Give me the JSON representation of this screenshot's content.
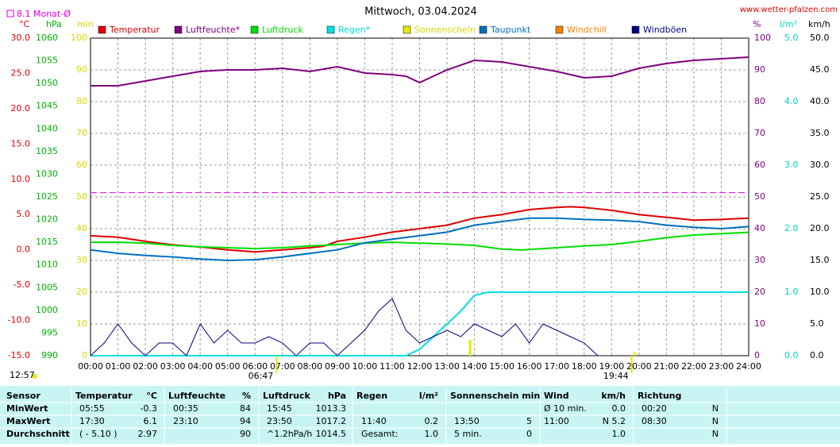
{
  "chart_data": {
    "type": "line",
    "title": "Mittwoch, 03.04.2024",
    "source": "www.wetter-pfalzen.com",
    "monthly_average": {
      "value": 8.1,
      "label": "8.1 Monat-Ø"
    },
    "xlim": [
      0,
      24
    ],
    "xticks": [
      {
        "value": 0,
        "label": "00:00"
      },
      {
        "value": 1,
        "label": "01:00"
      },
      {
        "value": 2,
        "label": "02:00"
      },
      {
        "value": 3,
        "label": "03:00"
      },
      {
        "value": 4,
        "label": "04:00"
      },
      {
        "value": 5,
        "label": "05:00"
      },
      {
        "value": 6,
        "label": "06:00"
      },
      {
        "value": 7,
        "label": "07:00"
      },
      {
        "value": 8,
        "label": "08:00"
      },
      {
        "value": 9,
        "label": "09:00"
      },
      {
        "value": 10,
        "label": "10:00"
      },
      {
        "value": 11,
        "label": "11:00"
      },
      {
        "value": 12,
        "label": "12:00"
      },
      {
        "value": 13,
        "label": "13:00"
      },
      {
        "value": 14,
        "label": "14:00"
      },
      {
        "value": 15,
        "label": "15:00"
      },
      {
        "value": 16,
        "label": "16:00"
      },
      {
        "value": 17,
        "label": "17:00"
      },
      {
        "value": 18,
        "label": "18:00"
      },
      {
        "value": 19,
        "label": "19:00"
      },
      {
        "value": 20,
        "label": "20:00"
      },
      {
        "value": 21,
        "label": "21:00"
      },
      {
        "value": 22,
        "label": "22:00"
      },
      {
        "value": 23,
        "label": "23:00"
      },
      {
        "value": 24,
        "label": "24:00"
      }
    ],
    "axes": [
      {
        "unit": "°C",
        "color": "#e00000",
        "lim": [
          -15,
          30
        ],
        "ticks": [
          {
            "value": 30,
            "label": "30.0"
          },
          {
            "value": 25,
            "label": "25.0"
          },
          {
            "value": 20,
            "label": "20.0"
          },
          {
            "value": 15,
            "label": "15.0"
          },
          {
            "value": 10,
            "label": "10.0"
          },
          {
            "value": 5,
            "label": "5.0"
          },
          {
            "value": 0,
            "label": "0.0"
          },
          {
            "value": -5,
            "label": "-5.0"
          },
          {
            "value": -10,
            "label": "-10.0"
          },
          {
            "value": -15,
            "label": "-15.0"
          }
        ]
      },
      {
        "unit": "hPa",
        "color": "#00b000",
        "lim": [
          990,
          1060
        ],
        "ticks": [
          1060,
          1055,
          1050,
          1045,
          1040,
          1035,
          1030,
          1025,
          1020,
          1015,
          1010,
          1005,
          1000,
          995,
          990
        ]
      },
      {
        "unit": "min",
        "color": "#d8d800",
        "lim": [
          0,
          100
        ],
        "ticks": [
          100,
          90,
          80,
          70,
          60,
          50,
          40,
          30,
          20,
          10,
          0
        ]
      },
      {
        "unit": "%",
        "color": "#800080",
        "lim": [
          0,
          100
        ],
        "ticks": [
          100,
          90,
          80,
          70,
          60,
          50,
          40,
          30,
          20,
          10,
          0
        ]
      },
      {
        "unit": "l/m²",
        "color": "#00d0d0",
        "lim": [
          0,
          5
        ],
        "ticks": [
          {
            "value": 5,
            "label": "5.0"
          },
          {
            "value": 4,
            "label": "4.0"
          },
          {
            "value": 3,
            "label": "3.0"
          },
          {
            "value": 2,
            "label": "2.0"
          },
          {
            "value": 1,
            "label": "1.0"
          },
          {
            "value": 0,
            "label": "0.0"
          }
        ]
      },
      {
        "unit": "km/h",
        "color": "#000000",
        "lim": [
          0,
          50
        ],
        "ticks": [
          {
            "value": 50,
            "label": "50.0"
          },
          {
            "value": 45,
            "label": "45.0"
          },
          {
            "value": 40,
            "label": "40.0"
          },
          {
            "value": 35,
            "label": "35.0"
          },
          {
            "value": 30,
            "label": "30.0"
          },
          {
            "value": 25,
            "label": "25.0"
          },
          {
            "value": 20,
            "label": "20.0"
          },
          {
            "value": 15,
            "label": "15.0"
          },
          {
            "value": 10,
            "label": "10.0"
          },
          {
            "value": 5,
            "label": "5.0"
          },
          {
            "value": 0,
            "label": "0.0"
          }
        ]
      }
    ],
    "grid": true,
    "series": [
      {
        "name": "Temperatur",
        "color": "#e00000",
        "axis": 0,
        "x": [
          0,
          1,
          2,
          3,
          4,
          5,
          6,
          7,
          8,
          8.5,
          9,
          10,
          11,
          12,
          13,
          14,
          15,
          16,
          17,
          17.5,
          18,
          19,
          20,
          21,
          22,
          23,
          24
        ],
        "values": [
          2.0,
          1.8,
          1.2,
          0.7,
          0.4,
          0.0,
          -0.3,
          0.0,
          0.3,
          0.5,
          1.2,
          1.8,
          2.5,
          3.0,
          3.5,
          4.5,
          5.0,
          5.7,
          6.0,
          6.1,
          6.0,
          5.6,
          5.0,
          4.6,
          4.2,
          4.3,
          4.5
        ]
      },
      {
        "name": "Luftfeuchte*",
        "color": "#800080",
        "axis": 3,
        "x": [
          0,
          1,
          2,
          3,
          4,
          5,
          6,
          7,
          8,
          9,
          10,
          11,
          11.5,
          12,
          13,
          14,
          15,
          16,
          17,
          18,
          19,
          20,
          21,
          22,
          23,
          24
        ],
        "values": [
          85,
          85,
          86.5,
          88,
          89.5,
          90,
          90,
          90.5,
          89.5,
          91,
          89,
          88.5,
          88,
          86,
          90,
          93,
          92.5,
          91,
          89.5,
          87.5,
          88,
          90.5,
          92,
          93,
          93.5,
          94
        ]
      },
      {
        "name": "Luftdruck",
        "color": "#00e000",
        "axis": 1,
        "x": [
          0,
          1,
          2,
          3,
          4,
          5,
          6,
          7,
          8,
          9,
          10,
          11,
          12,
          13,
          14,
          15,
          15.75,
          16,
          17,
          18,
          19,
          20,
          21,
          22,
          23,
          24
        ],
        "values": [
          1015,
          1015,
          1014.8,
          1014.3,
          1014,
          1013.8,
          1013.6,
          1013.8,
          1014.2,
          1014.5,
          1014.8,
          1015,
          1014.8,
          1014.6,
          1014.3,
          1013.5,
          1013.3,
          1013.4,
          1013.8,
          1014.2,
          1014.5,
          1015.2,
          1016,
          1016.6,
          1016.9,
          1017.2
        ]
      },
      {
        "name": "Regen*",
        "color": "#00e0e0",
        "axis": 4,
        "x": [
          0,
          11.5,
          12,
          13,
          13.5,
          14,
          14.5,
          24
        ],
        "values": [
          0,
          0,
          0.1,
          0.5,
          0.7,
          0.95,
          1.0,
          1.0
        ]
      },
      {
        "name": "Sonnenschein",
        "color": "#e8e800",
        "axis": 2,
        "style": "bar",
        "x": [
          13.83,
          19.83
        ],
        "values": [
          5,
          1
        ]
      },
      {
        "name": "Taupunkt",
        "color": "#0070c0",
        "axis": 0,
        "x": [
          0,
          1,
          2,
          3,
          4,
          5,
          6,
          7,
          8,
          9,
          10,
          11,
          12,
          13,
          14,
          15,
          16,
          17,
          18,
          19,
          20,
          21,
          22,
          23,
          24
        ],
        "values": [
          0.0,
          -0.5,
          -0.8,
          -1.0,
          -1.3,
          -1.5,
          -1.4,
          -1.0,
          -0.5,
          0.0,
          1.0,
          1.5,
          2.0,
          2.5,
          3.5,
          4.0,
          4.5,
          4.5,
          4.3,
          4.2,
          4.0,
          3.5,
          3.2,
          3.0,
          3.3
        ]
      },
      {
        "name": "Windchill",
        "color": "#ff8000",
        "axis": 0,
        "x": [],
        "values": []
      },
      {
        "name": "Windböen",
        "color": "#000080",
        "axis": 5,
        "x": [
          0,
          0.5,
          1,
          1.5,
          2,
          2.5,
          3,
          3.5,
          4,
          4.5,
          5,
          5.5,
          6,
          6.5,
          7,
          7.5,
          8,
          8.5,
          9,
          9.5,
          10,
          10.5,
          11,
          11.5,
          12,
          12.5,
          13,
          13.5,
          14,
          14.5,
          15,
          15.5,
          16,
          16.5,
          17,
          17.5,
          18,
          18.5
        ],
        "values": [
          0,
          2,
          5,
          2,
          0,
          2,
          2,
          0,
          5,
          2,
          4,
          2,
          2,
          3,
          2,
          0,
          2,
          2,
          0,
          2,
          4,
          7,
          9,
          4,
          2,
          3,
          4,
          3,
          5,
          4,
          3,
          5,
          2,
          5,
          4,
          3,
          2,
          0
        ]
      }
    ],
    "annotations": [
      {
        "label": "12:57"
      },
      {
        "x": 6.783,
        "label": "06:47"
      },
      {
        "x": 19.733,
        "label": "19:44"
      }
    ]
  },
  "table": {
    "header": {
      "sensor": "Sensor",
      "temp": "Temperatur",
      "temp_unit": "°C",
      "hum": "Luftfeuchte",
      "hum_unit": "%",
      "press": "Luftdruck",
      "press_unit": "hPa",
      "rain": "Regen",
      "rain_unit": "l/m²",
      "sun": "Sonnenschein min",
      "wind": "Wind",
      "wind_unit": "km/h",
      "dir": "Richtung"
    },
    "rows": [
      {
        "sensor": "MinWert",
        "temp_time": "05:55",
        "temp_value": "-0.3",
        "hum_time": "00:35",
        "hum_value": "84",
        "press_time": "15:45",
        "press_value": "1013.3",
        "wind_time": "Ø 10 min.",
        "wind_value": "0.0",
        "dir_time": "00:20",
        "dir_value": "N"
      },
      {
        "sensor": "MaxWert",
        "temp_time": "17:30",
        "temp_value": "6.1",
        "hum_time": "23:10",
        "hum_value": "94",
        "press_time": "23:50",
        "press_value": "1017.2",
        "rain_time": "11:40",
        "rain_value": "0.2",
        "sun_time": "13:50",
        "sun_value": "5",
        "wind_time": "11:00",
        "wind_value": "N 5.2",
        "dir_time": "08:30",
        "dir_value": "N"
      },
      {
        "sensor": "Durchschnitt",
        "temp_time": "( - 5.10 )",
        "temp_value": "2.97",
        "hum_value": "90",
        "press_time": "^1.2hPa/h",
        "press_value": "1014.5",
        "rain_time": "Gesamt:",
        "rain_value": "1.0",
        "sun_time": "5 min.",
        "sun_value": "0",
        "wind_value": "1.0",
        "dir_value": "N"
      }
    ]
  }
}
